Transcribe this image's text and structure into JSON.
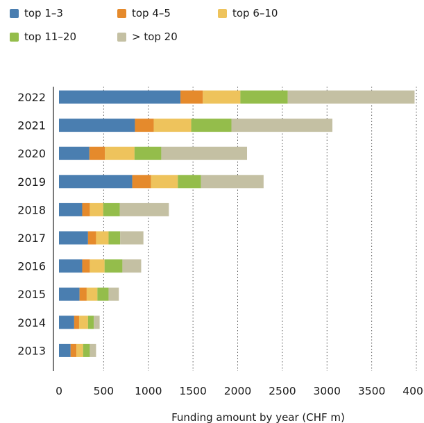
{
  "chart_data": {
    "type": "bar",
    "orientation": "horizontal",
    "stacked": true,
    "title": "",
    "xlabel": "Funding amount by year (CHF  m)",
    "ylabel": "",
    "xlim": [
      0,
      4000
    ],
    "x_ticks": [
      0,
      500,
      1000,
      1500,
      2000,
      2500,
      3000,
      3500,
      4000
    ],
    "grid": "vertical dotted",
    "legend_position": "top-left",
    "categories": [
      "2022",
      "2021",
      "2020",
      "2019",
      "2018",
      "2017",
      "2016",
      "2015",
      "2014",
      "2013"
    ],
    "series": [
      {
        "name": "top 1–3",
        "color": "#4a7eb0",
        "values": [
          1360,
          850,
          340,
          820,
          260,
          325,
          260,
          230,
          170,
          130
        ]
      },
      {
        "name": "top 4–5",
        "color": "#e58a2c",
        "values": [
          250,
          210,
          175,
          210,
          85,
          90,
          85,
          80,
          55,
          65
        ]
      },
      {
        "name": "top 6–10",
        "color": "#eec35c",
        "values": [
          420,
          420,
          330,
          300,
          150,
          140,
          165,
          120,
          100,
          75
        ]
      },
      {
        "name": "top 11–20",
        "color": "#94bd4b",
        "values": [
          530,
          450,
          300,
          260,
          185,
          130,
          200,
          125,
          65,
          75
        ]
      },
      {
        "name": "> top 20",
        "color": "#c4c0a3",
        "values": [
          1420,
          1130,
          960,
          700,
          550,
          260,
          210,
          115,
          65,
          70
        ]
      }
    ]
  }
}
